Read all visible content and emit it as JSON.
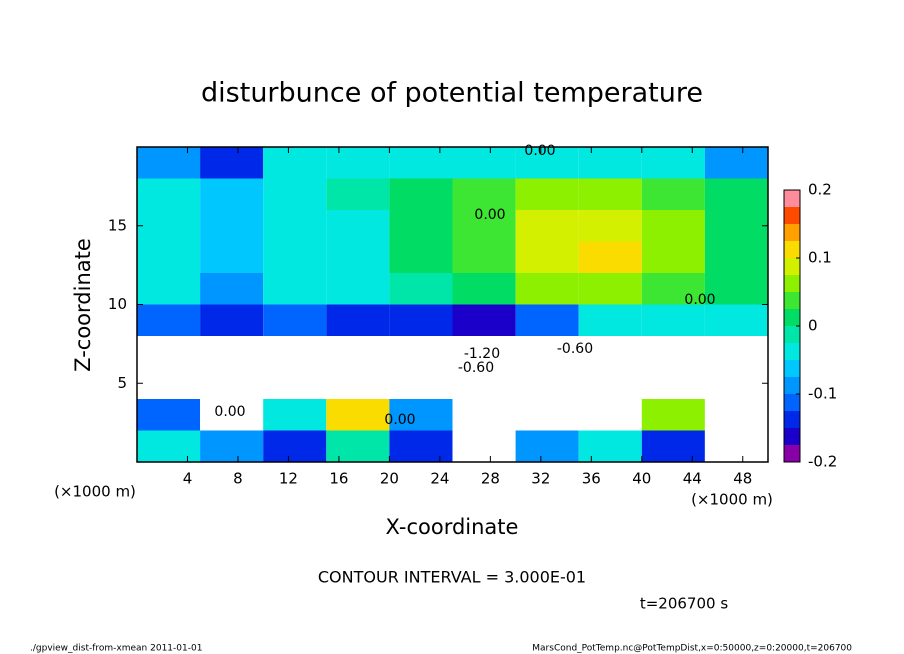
{
  "chart_data": {
    "type": "heatmap",
    "title": "disturbunce of potential temperature",
    "x_label": "X-coordinate",
    "y_label": "Z-coordinate",
    "x_unit": "(×1000 m)",
    "y_unit": "(×1000 m)",
    "contour_interval": "CONTOUR INTERVAL = 3.000E-01",
    "time_label": "t=206700 s",
    "footer_left": "./gpview_dist-from-xmean   2011-01-01",
    "footer_right": "MarsCond_PotTemp.nc@PotTempDist,x=0:50000,z=0:20000,t=206700",
    "annotations": [
      "0.00",
      "0.00",
      "0.00",
      "0.00",
      "-1.20",
      "-0.60",
      "-0.60",
      "0.00"
    ],
    "xlim": [
      0,
      50
    ],
    "ylim": [
      0,
      20
    ],
    "xticks": [
      4,
      8,
      12,
      16,
      20,
      24,
      28,
      32,
      36,
      40,
      44,
      48
    ],
    "yticks": [
      5,
      10,
      15
    ],
    "x_edges": [
      0,
      5,
      10,
      15,
      20,
      25,
      30,
      35,
      40,
      45,
      50
    ],
    "z_edges": [
      20,
      18,
      16,
      14,
      12,
      10,
      8,
      6,
      4,
      2,
      0
    ],
    "values": [
      [
        -0.1,
        -0.15,
        -0.05,
        -0.05,
        -0.05,
        -0.05,
        -0.05,
        -0.05,
        -0.05,
        -0.1
      ],
      [
        -0.03,
        -0.06,
        -0.03,
        -0.02,
        0,
        0.04,
        0.07,
        0.07,
        0.04,
        0.02
      ],
      [
        -0.03,
        -0.06,
        -0.04,
        -0.03,
        0,
        0.04,
        0.08,
        0.09,
        0.06,
        0.02
      ],
      [
        -0.04,
        -0.07,
        -0.05,
        -0.03,
        0,
        0.04,
        0.08,
        0.1,
        0.06,
        0.02
      ],
      [
        -0.05,
        -0.08,
        -0.05,
        -0.03,
        -0.01,
        0.02,
        0.05,
        0.06,
        0.04,
        0.01
      ],
      [
        -0.12,
        -0.13,
        -0.12,
        -0.13,
        -0.14,
        -0.16,
        -0.12,
        -0.05,
        -0.05,
        -0.04
      ],
      [
        0.3,
        0.3,
        0.3,
        0.3,
        0.3,
        0.3,
        0.3,
        0.3,
        0.3,
        0.3
      ],
      [
        0.3,
        0.3,
        0.3,
        0.3,
        0.3,
        0.3,
        0.3,
        0.3,
        0.3,
        0.3
      ],
      [
        -0.12,
        0.3,
        -0.05,
        0.1,
        -0.1,
        0.3,
        0.3,
        0.3,
        0.05,
        0.3
      ],
      [
        -0.05,
        -0.08,
        -0.15,
        -0.02,
        -0.15,
        0.3,
        -0.1,
        -0.05,
        -0.15,
        0.3
      ]
    ],
    "clim": [
      -0.2,
      0.2
    ],
    "cticks": [
      -0.2,
      -0.1,
      0,
      0.1,
      0.2
    ],
    "colorscale": [
      "#8a00a8",
      "#1a00c8",
      "#0028e8",
      "#0064ff",
      "#0096ff",
      "#00c8ff",
      "#00e8e0",
      "#00e6a8",
      "#00dc64",
      "#3ce632",
      "#8cf000",
      "#d2f000",
      "#fadc00",
      "#ffa000",
      "#ff4b00",
      "#ff8c9b"
    ],
    "out_of_range_color": "#ffffff"
  }
}
